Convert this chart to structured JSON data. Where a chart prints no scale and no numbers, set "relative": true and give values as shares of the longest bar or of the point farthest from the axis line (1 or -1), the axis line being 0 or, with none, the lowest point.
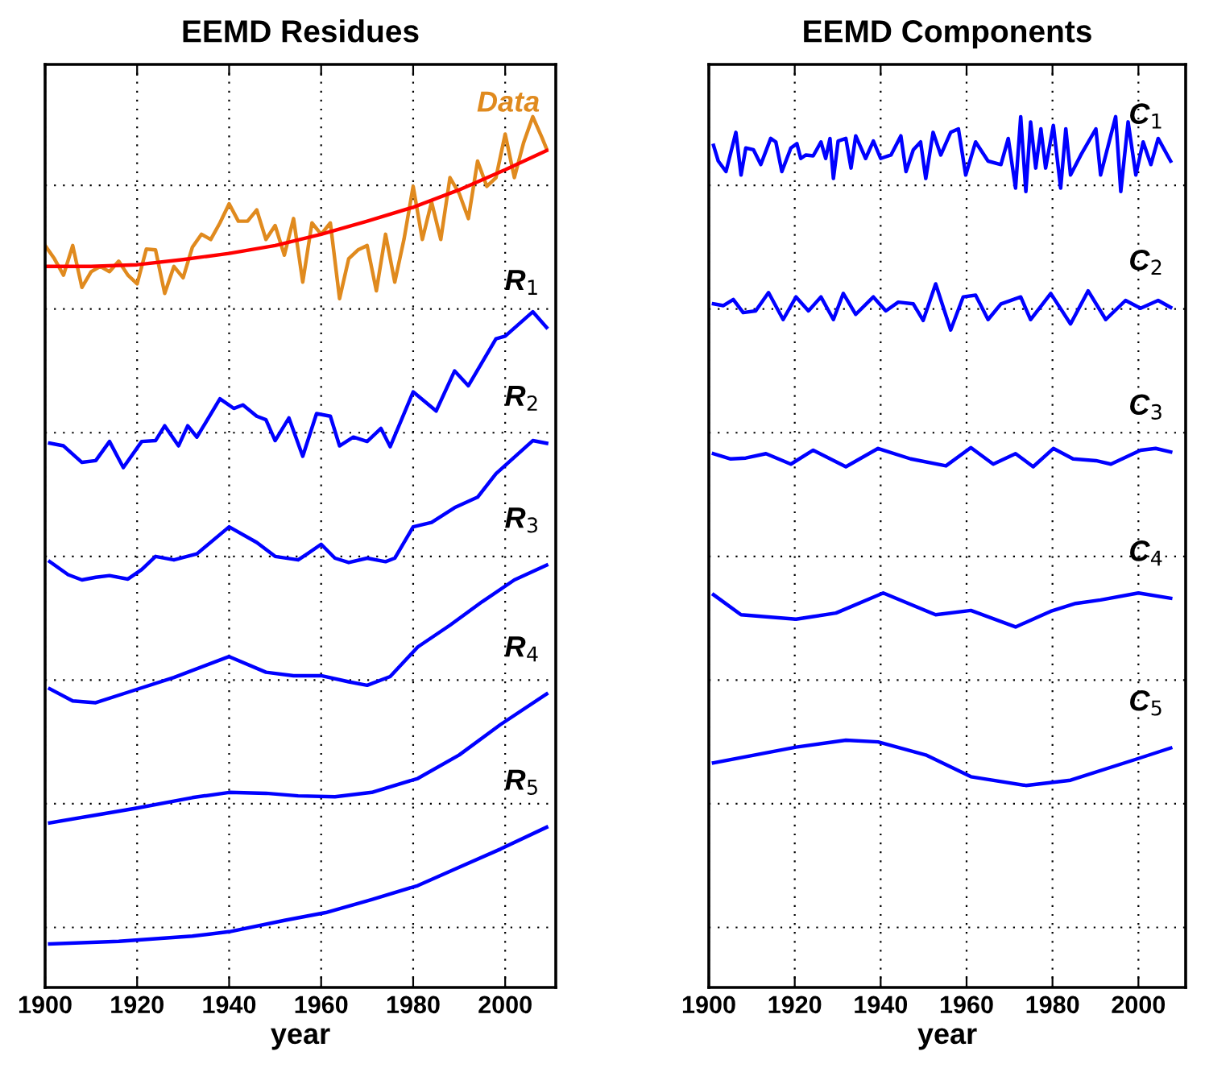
{
  "chart_data": [
    {
      "type": "line",
      "title": "EEMD Residues",
      "xlabel": "year",
      "relative": true,
      "grid": true,
      "tick_labels": "x",
      "line_style": "solid",
      "marker": "none",
      "xlim": [
        1900,
        2011
      ],
      "xticks": [
        1900,
        1920,
        1940,
        1960,
        1980,
        2000
      ],
      "series": [
        {
          "name": "Data",
          "color": "#e08a1e",
          "x": [
            1900,
            1902,
            1904,
            1906,
            1908,
            1910,
            1912,
            1914,
            1916,
            1918,
            1920,
            1922,
            1924,
            1926,
            1928,
            1930,
            1932,
            1934,
            1936,
            1938,
            1940,
            1942,
            1944,
            1946,
            1948,
            1950,
            1952,
            1954,
            1956,
            1958,
            1960,
            1962,
            1964,
            1966,
            1968,
            1970,
            1972,
            1974,
            1976,
            1978,
            1980,
            1982,
            1984,
            1986,
            1988,
            1990,
            1992,
            1994,
            1996,
            1998,
            2000,
            2002,
            2004,
            2006,
            2008,
            2009
          ],
          "values": [
            0.852,
            0.837,
            0.818,
            0.852,
            0.804,
            0.822,
            0.828,
            0.822,
            0.834,
            0.818,
            0.808,
            0.848,
            0.847,
            0.797,
            0.828,
            0.815,
            0.85,
            0.865,
            0.859,
            0.878,
            0.9,
            0.88,
            0.88,
            0.893,
            0.859,
            0.875,
            0.841,
            0.883,
            0.81,
            0.878,
            0.865,
            0.878,
            0.791,
            0.837,
            0.847,
            0.852,
            0.8,
            0.865,
            0.81,
            0.859,
            0.92,
            0.859,
            0.902,
            0.859,
            0.93,
            0.912,
            0.883,
            0.949,
            0.92,
            0.93,
            0.98,
            0.93,
            0.97,
            1.0,
            0.976,
            0.963
          ]
        },
        {
          "color": "#ff0000",
          "x": [
            1900,
            1910,
            1920,
            1930,
            1940,
            1950,
            1960,
            1970,
            1980,
            1990,
            2000,
            2009
          ],
          "values": [
            0.828,
            0.828,
            0.83,
            0.836,
            0.843,
            0.852,
            0.865,
            0.88,
            0.896,
            0.916,
            0.939,
            0.961
          ]
        },
        {
          "name": "R$_{1}$",
          "color": "#0000ff",
          "x": [
            1901,
            1904,
            1908,
            1911,
            1914,
            1917,
            1921,
            1924,
            1926,
            1929,
            1931,
            1933,
            1938,
            1941,
            1943,
            1946,
            1948,
            1950,
            1953,
            1956,
            1959,
            1962,
            1964,
            1967,
            1970,
            1973,
            1975,
            1980,
            1985,
            1989,
            1992,
            1998,
            2000,
            2006,
            2009
          ],
          "values": [
            0.625,
            0.622,
            0.603,
            0.605,
            0.627,
            0.597,
            0.627,
            0.628,
            0.645,
            0.622,
            0.645,
            0.632,
            0.676,
            0.665,
            0.669,
            0.656,
            0.652,
            0.628,
            0.654,
            0.61,
            0.659,
            0.656,
            0.622,
            0.632,
            0.627,
            0.642,
            0.621,
            0.684,
            0.662,
            0.708,
            0.691,
            0.745,
            0.748,
            0.776,
            0.758
          ]
        },
        {
          "name": "R$_{2}$",
          "color": "#0000ff",
          "x": [
            1901,
            1905,
            1908,
            1911,
            1914,
            1918,
            1921,
            1924,
            1928,
            1933,
            1940,
            1946,
            1950,
            1955,
            1957,
            1960,
            1963,
            1966,
            1970,
            1974,
            1976,
            1980,
            1984,
            1989,
            1994,
            1998,
            2002,
            2006,
            2009
          ],
          "values": [
            0.489,
            0.474,
            0.468,
            0.471,
            0.473,
            0.469,
            0.48,
            0.495,
            0.491,
            0.498,
            0.529,
            0.511,
            0.495,
            0.491,
            0.498,
            0.509,
            0.493,
            0.488,
            0.493,
            0.489,
            0.493,
            0.529,
            0.534,
            0.551,
            0.563,
            0.59,
            0.609,
            0.628,
            0.625
          ]
        },
        {
          "name": "R$_{3}$",
          "color": "#0000ff",
          "x": [
            1901,
            1906,
            1911,
            1918,
            1928,
            1940,
            1948,
            1954,
            1960,
            1966,
            1970,
            1975,
            1981,
            1988,
            1995,
            2002,
            2009
          ],
          "values": [
            0.343,
            0.329,
            0.327,
            0.339,
            0.356,
            0.38,
            0.362,
            0.358,
            0.358,
            0.351,
            0.347,
            0.357,
            0.391,
            0.416,
            0.443,
            0.468,
            0.485
          ]
        },
        {
          "name": "R$_{4}$",
          "color": "#0000ff",
          "x": [
            1901,
            1911,
            1920,
            1932,
            1940,
            1948,
            1955,
            1963,
            1971,
            1981,
            1990,
            1999,
            2009
          ],
          "values": [
            0.189,
            0.198,
            0.206,
            0.218,
            0.224,
            0.223,
            0.22,
            0.219,
            0.224,
            0.24,
            0.267,
            0.302,
            0.337
          ]
        },
        {
          "name": "R$_{5}$",
          "color": "#0000ff",
          "x": [
            1901,
            1916,
            1932,
            1940,
            1952,
            1961,
            1971,
            1981,
            1990,
            1999,
            2009
          ],
          "values": [
            0.05,
            0.053,
            0.059,
            0.064,
            0.077,
            0.086,
            0.101,
            0.117,
            0.138,
            0.159,
            0.184
          ]
        }
      ]
    },
    {
      "type": "line",
      "title": "EEMD Components",
      "xlabel": "year",
      "relative": true,
      "grid": true,
      "tick_labels": "x",
      "line_style": "solid",
      "marker": "none",
      "xlim": [
        1900,
        2011
      ],
      "xticks": [
        1900,
        1920,
        1940,
        1960,
        1980,
        2000
      ],
      "series": [
        {
          "name": "C$_{1}$",
          "color": "#0000ff",
          "x": [
            1901.1,
            1902.2,
            1904.0,
            1906.3,
            1907.5,
            1908.6,
            1910.4,
            1912.1,
            1914.4,
            1915.6,
            1917.0,
            1919.1,
            1920.5,
            1921.4,
            1922.6,
            1924.3,
            1926.1,
            1927.2,
            1928.2,
            1929.0,
            1930.1,
            1931.9,
            1933.1,
            1934.2,
            1936.5,
            1938.3,
            1940.0,
            1942.4,
            1944.7,
            1945.9,
            1947.6,
            1949.3,
            1950.5,
            1952.2,
            1954.0,
            1956.3,
            1958.1,
            1959.8,
            1962.1,
            1965.0,
            1968.0,
            1969.7,
            1971.4,
            1972.6,
            1973.8,
            1974.9,
            1976.1,
            1977.3,
            1978.4,
            1980.2,
            1981.9,
            1983.1,
            1984.2,
            1986.6,
            1990.1,
            1991.2,
            1994.7,
            1995.9,
            1997.6,
            1999.4,
            2001.1,
            2002.9,
            2004.6,
            2007.5
          ],
          "values": [
            0.967,
            0.949,
            0.937,
            0.982,
            0.933,
            0.964,
            0.962,
            0.945,
            0.975,
            0.971,
            0.937,
            0.964,
            0.969,
            0.952,
            0.956,
            0.955,
            0.971,
            0.952,
            0.975,
            0.929,
            0.972,
            0.975,
            0.941,
            0.978,
            0.952,
            0.972,
            0.952,
            0.956,
            0.978,
            0.937,
            0.962,
            0.971,
            0.929,
            0.982,
            0.956,
            0.982,
            0.986,
            0.933,
            0.971,
            0.949,
            0.945,
            0.975,
            0.918,
            1.0,
            0.914,
            0.994,
            0.941,
            0.986,
            0.941,
            0.99,
            0.918,
            0.986,
            0.933,
            0.956,
            0.986,
            0.933,
            1.0,
            0.914,
            0.994,
            0.933,
            0.971,
            0.945,
            0.975,
            0.949
          ]
        },
        {
          "name": "C$_{2}$",
          "color": "#0000ff",
          "x": [
            1901.1,
            1903.4,
            1905.7,
            1908.0,
            1910.9,
            1913.9,
            1917.3,
            1920.3,
            1923.2,
            1926.1,
            1929.0,
            1931.3,
            1934.2,
            1938.3,
            1941.2,
            1944.1,
            1947.6,
            1949.9,
            1952.8,
            1956.3,
            1959.2,
            1962.1,
            1965.0,
            1968.0,
            1972.6,
            1974.9,
            1979.6,
            1984.2,
            1988.3,
            1992.4,
            1997.0,
            2000.5,
            2004.6,
            2007.5
          ],
          "values": [
            0.785,
            0.783,
            0.79,
            0.775,
            0.777,
            0.798,
            0.767,
            0.793,
            0.777,
            0.793,
            0.767,
            0.797,
            0.773,
            0.793,
            0.777,
            0.787,
            0.785,
            0.766,
            0.808,
            0.755,
            0.793,
            0.795,
            0.767,
            0.785,
            0.793,
            0.767,
            0.797,
            0.762,
            0.8,
            0.767,
            0.789,
            0.78,
            0.789,
            0.781
          ]
        },
        {
          "name": "C$_{3}$",
          "color": "#0000ff",
          "x": [
            1901.1,
            1905.1,
            1908.6,
            1913.3,
            1919.1,
            1924.3,
            1931.9,
            1939.4,
            1947.0,
            1955.2,
            1961.0,
            1966.2,
            1971.4,
            1975.5,
            1980.2,
            1984.8,
            1990.1,
            1993.6,
            2000.5,
            2004.0,
            2007.5
          ],
          "values": [
            0.613,
            0.607,
            0.608,
            0.613,
            0.601,
            0.617,
            0.598,
            0.619,
            0.607,
            0.599,
            0.62,
            0.601,
            0.613,
            0.598,
            0.619,
            0.607,
            0.605,
            0.601,
            0.617,
            0.619,
            0.615
          ]
        },
        {
          "name": "C$_{4}$",
          "color": "#0000ff",
          "x": [
            1901.1,
            1907.5,
            1920.3,
            1929.6,
            1940.6,
            1952.8,
            1961.0,
            1971.4,
            1979.6,
            1985.4,
            1991.2,
            2000.0,
            2007.5
          ],
          "values": [
            0.451,
            0.428,
            0.423,
            0.43,
            0.453,
            0.428,
            0.433,
            0.414,
            0.432,
            0.441,
            0.445,
            0.453,
            0.447
          ]
        },
        {
          "name": "C$_{5}$",
          "color": "#0000ff",
          "x": [
            1901.1,
            1920.3,
            1931.9,
            1939.4,
            1950.5,
            1961.0,
            1973.8,
            1984.2,
            1999.4,
            2007.5
          ],
          "values": [
            0.258,
            0.276,
            0.284,
            0.282,
            0.267,
            0.242,
            0.232,
            0.238,
            0.262,
            0.275
          ]
        }
      ]
    }
  ]
}
